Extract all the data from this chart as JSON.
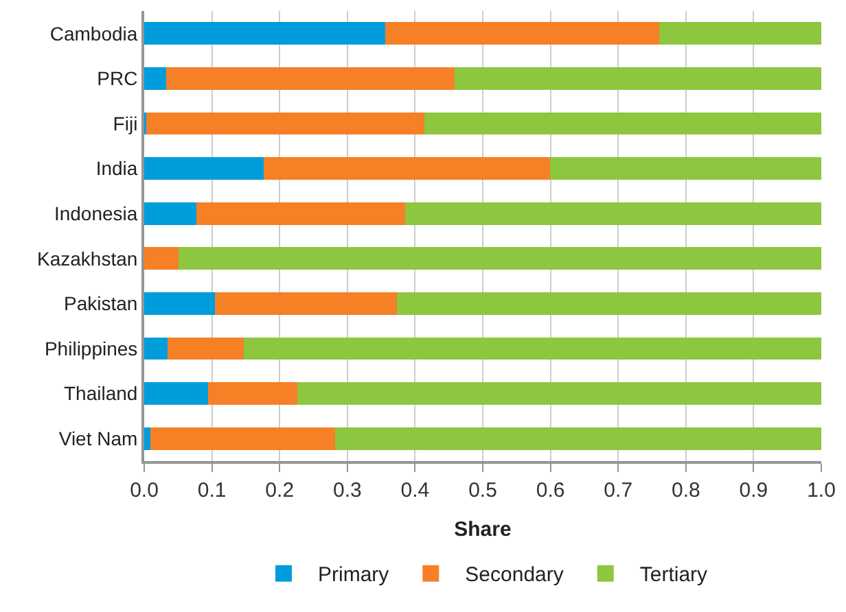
{
  "chart_data": {
    "type": "bar",
    "orientation": "horizontal",
    "stacked": true,
    "xlabel": "Share",
    "categories": [
      "Cambodia",
      "PRC",
      "Fiji",
      "India",
      "Indonesia",
      "Kazakhstan",
      "Pakistan",
      "Philippines",
      "Thailand",
      "Viet Nam"
    ],
    "series": [
      {
        "name": "Primary",
        "color": "#009ddc",
        "values": [
          0.356,
          0.032,
          0.003,
          0.176,
          0.077,
          0,
          0.104,
          0.034,
          0.094,
          0.009
        ]
      },
      {
        "name": "Secondary",
        "color": "#f58025",
        "values": [
          0.405,
          0.426,
          0.411,
          0.423,
          0.308,
          0.051,
          0.269,
          0.113,
          0.132,
          0.273
        ]
      },
      {
        "name": "Tertiary",
        "color": "#8dc63f",
        "values": [
          0.239,
          0.542,
          0.586,
          0.401,
          0.615,
          0.949,
          0.627,
          0.853,
          0.774,
          0.718
        ]
      }
    ],
    "xlim": [
      0,
      1
    ],
    "xticks": [
      {
        "value": 0,
        "label": "0.0"
      },
      0.1,
      0.2,
      0.3,
      0.4,
      0.5,
      0.6,
      0.7,
      0.8,
      0.9,
      {
        "value": 1,
        "label": "1.0"
      }
    ],
    "grid": "x",
    "legend": "bottom"
  }
}
